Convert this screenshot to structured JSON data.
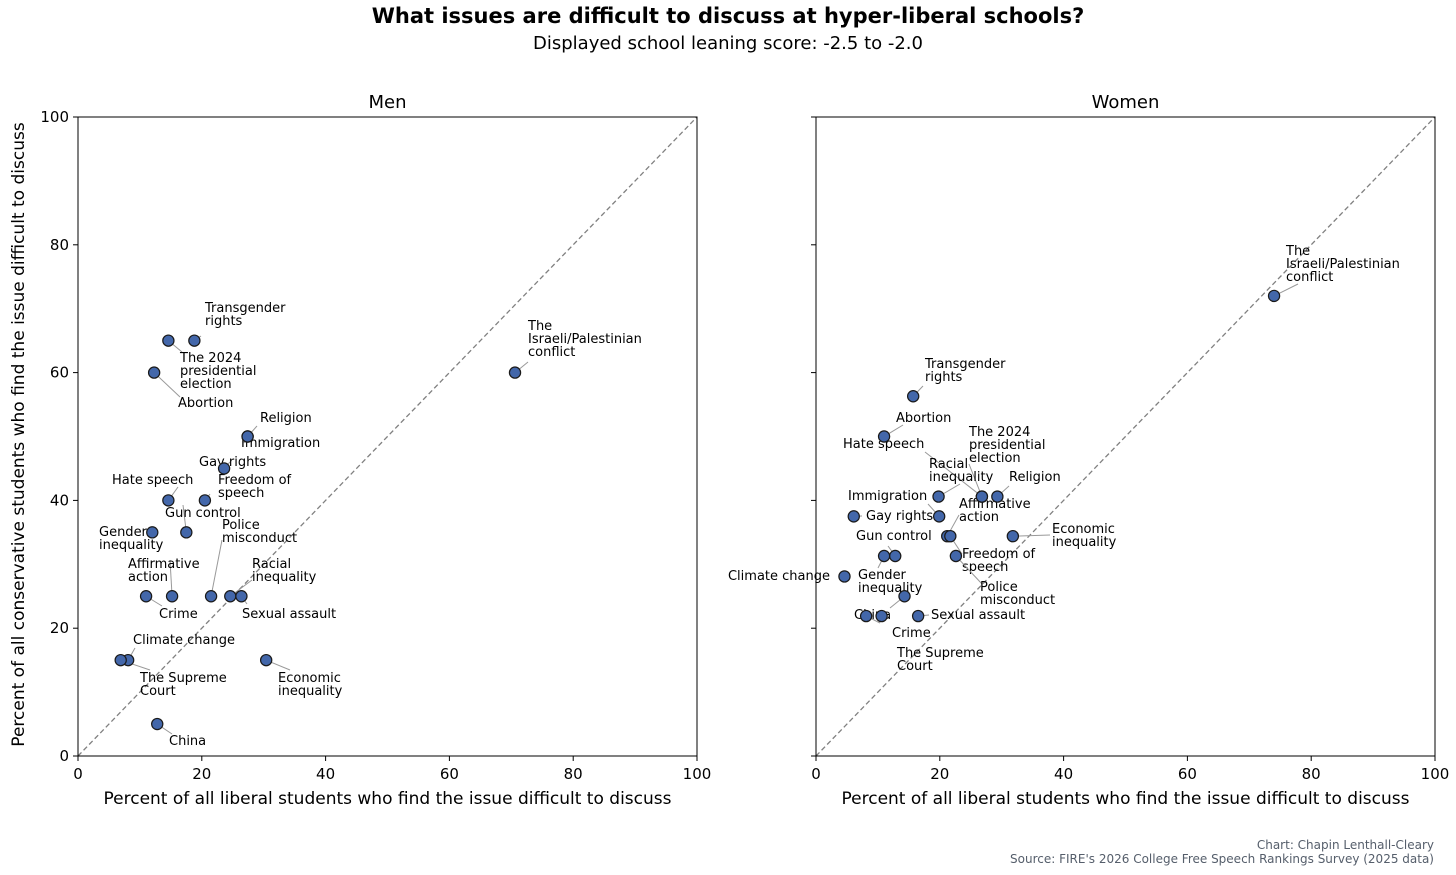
{
  "title": "What issues are difficult to discuss at hyper-liberal schools?",
  "subtitle": "Displayed school leaning score: -2.5 to -2.0",
  "credit": "Chart: Chapin Lenthall-Cleary",
  "source": "Source: FIRE's 2026 College Free Speech Rankings Survey (2025 data)",
  "colors": {
    "point_fill": "#4367aa",
    "point_stroke": "#1a1a1a",
    "diagonal": "#808080",
    "leader": "#999999"
  },
  "chart_data": [
    {
      "type": "scatter",
      "panel_title": "Men",
      "xlabel": "Percent of all liberal students who find the issue difficult to discuss",
      "ylabel": "Percent of all conservative students who find the issue difficult to discuss",
      "xlim": [
        0,
        100
      ],
      "ylim": [
        0,
        100
      ],
      "xticks": [
        "0",
        "20",
        "40",
        "60",
        "80",
        "100"
      ],
      "yticks": [
        "0",
        "20",
        "40",
        "60",
        "80",
        "100"
      ],
      "reference_line": "y = x (dashed)",
      "points": [
        {
          "label": "Transgender rights",
          "x": 18.8,
          "y": 65.0
        },
        {
          "label": "The 2024 presidential election",
          "x": 14.6,
          "y": 65.0
        },
        {
          "label": "Abortion",
          "x": 12.3,
          "y": 60.0
        },
        {
          "label": "The Israeli/Palestinian conflict",
          "x": 70.6,
          "y": 60.0
        },
        {
          "label": "Religion",
          "x": 27.4,
          "y": 50.0
        },
        {
          "label": "Immigration",
          "x": 27.4,
          "y": 50.0
        },
        {
          "label": "Gay rights",
          "x": 23.6,
          "y": 45.0
        },
        {
          "label": "Hate speech",
          "x": 14.6,
          "y": 40.0
        },
        {
          "label": "Freedom of speech",
          "x": 20.5,
          "y": 40.0
        },
        {
          "label": "Gun control",
          "x": 17.5,
          "y": 35.0
        },
        {
          "label": "Gender inequality",
          "x": 12.0,
          "y": 35.0
        },
        {
          "label": "Police misconduct",
          "x": 21.5,
          "y": 25.0
        },
        {
          "label": "Affirmative action",
          "x": 15.2,
          "y": 25.0
        },
        {
          "label": "Racial inequality",
          "x": 24.6,
          "y": 25.0
        },
        {
          "label": "Crime",
          "x": 11.0,
          "y": 25.0
        },
        {
          "label": "Sexual assault",
          "x": 26.4,
          "y": 25.0
        },
        {
          "label": "Climate change",
          "x": 8.1,
          "y": 15.0
        },
        {
          "label": "The Supreme Court",
          "x": 6.9,
          "y": 15.0
        },
        {
          "label": "Economic inequality",
          "x": 30.4,
          "y": 15.0
        },
        {
          "label": "China",
          "x": 12.8,
          "y": 5.0
        }
      ]
    },
    {
      "type": "scatter",
      "panel_title": "Women",
      "xlabel": "Percent of all liberal students who find the issue difficult to discuss",
      "ylabel": "",
      "xlim": [
        0,
        100
      ],
      "ylim": [
        0,
        100
      ],
      "xticks": [
        "0",
        "20",
        "40",
        "60",
        "80",
        "100"
      ],
      "yticks": [
        "0",
        "20",
        "40",
        "60",
        "80",
        "100"
      ],
      "reference_line": "y = x (dashed)",
      "points": [
        {
          "label": "The Israeli/Palestinian conflict",
          "x": 74.0,
          "y": 72.0
        },
        {
          "label": "Transgender rights",
          "x": 15.7,
          "y": 56.3
        },
        {
          "label": "Abortion",
          "x": 11.0,
          "y": 50.0
        },
        {
          "label": "Hate speech",
          "x": 26.8,
          "y": 40.6
        },
        {
          "label": "The 2024 presidential election",
          "x": 26.8,
          "y": 40.6
        },
        {
          "label": "Racial inequality",
          "x": 19.8,
          "y": 40.6
        },
        {
          "label": "Religion",
          "x": 29.3,
          "y": 40.6
        },
        {
          "label": "Immigration",
          "x": 19.9,
          "y": 37.5
        },
        {
          "label": "Affirmative action",
          "x": 21.2,
          "y": 34.4
        },
        {
          "label": "Gay rights",
          "x": 6.1,
          "y": 37.5
        },
        {
          "label": "Economic inequality",
          "x": 31.8,
          "y": 34.4
        },
        {
          "label": "Gun control",
          "x": 12.8,
          "y": 31.3
        },
        {
          "label": "Freedom of speech",
          "x": 21.7,
          "y": 34.4
        },
        {
          "label": "Gender inequality",
          "x": 11.0,
          "y": 31.3
        },
        {
          "label": "Climate change",
          "x": 4.6,
          "y": 28.1
        },
        {
          "label": "Police misconduct",
          "x": 22.6,
          "y": 31.3
        },
        {
          "label": "China",
          "x": 14.3,
          "y": 25.0
        },
        {
          "label": "Sexual assault",
          "x": 16.5,
          "y": 21.9
        },
        {
          "label": "Crime",
          "x": 10.6,
          "y": 21.9
        },
        {
          "label": "The Supreme Court",
          "x": 8.1,
          "y": 21.9
        }
      ]
    }
  ]
}
